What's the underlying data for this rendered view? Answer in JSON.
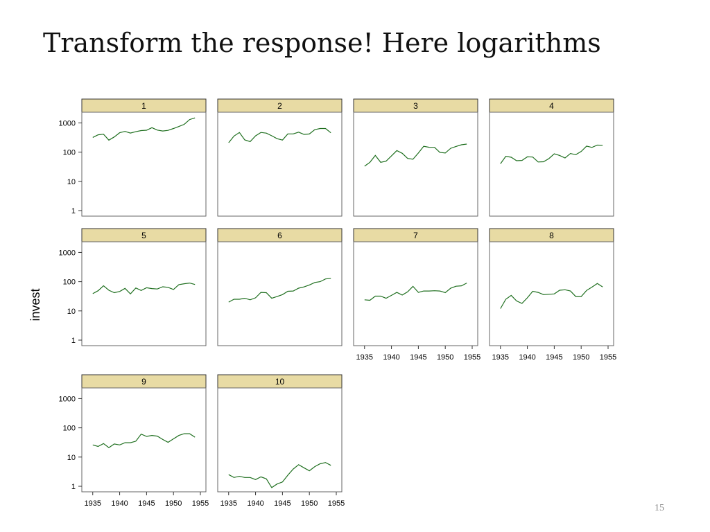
{
  "slide": {
    "title": "Transform the response! Here logarithms",
    "page_number": "15"
  },
  "chart_data": {
    "type": "line",
    "layout": "small-multiples",
    "ylabel": "invest",
    "xlabel": "",
    "y_scale": "log",
    "ylim": [
      1,
      1500
    ],
    "xlim": [
      1934,
      1955
    ],
    "y_ticks": [
      1,
      10,
      100,
      1000
    ],
    "y_tick_labels": [
      "1",
      "10",
      "100",
      "1000"
    ],
    "x_ticks": [
      1935,
      1940,
      1945,
      1950,
      1955
    ],
    "x_tick_labels": [
      "1935",
      "1940",
      "1945",
      "1950",
      "1955"
    ],
    "grid": false,
    "line_color": "#1f6f1f",
    "strip_color": "#e8dba4",
    "x": [
      1935,
      1936,
      1937,
      1938,
      1939,
      1940,
      1941,
      1942,
      1943,
      1944,
      1945,
      1946,
      1947,
      1948,
      1949,
      1950,
      1951,
      1952,
      1953,
      1954
    ],
    "panels": [
      {
        "label": "1",
        "values": [
          318,
          392,
          411,
          258,
          331,
          462,
          512,
          448,
          500,
          548,
          561,
          688,
          569,
          529,
          555,
          643,
          756,
          891,
          1304,
          1487
        ]
      },
      {
        "label": "2",
        "values": [
          210,
          356,
          469,
          262,
          230,
          361,
          472,
          446,
          362,
          288,
          259,
          420,
          421,
          482,
          405,
          418,
          588,
          645,
          642,
          459
        ]
      },
      {
        "label": "3",
        "values": [
          33,
          45,
          77,
          45,
          49,
          74,
          113,
          91,
          61,
          57,
          93,
          159,
          147,
          146,
          98,
          93,
          135,
          157,
          179,
          189
        ]
      },
      {
        "label": "4",
        "values": [
          40,
          72,
          67,
          51,
          52,
          69,
          68,
          46,
          47,
          60,
          88,
          77,
          63,
          90,
          82,
          105,
          161,
          145,
          174,
          172
        ]
      },
      {
        "label": "5",
        "values": [
          39,
          49,
          72,
          51,
          42,
          46,
          59,
          38,
          61,
          50,
          62,
          58,
          56,
          67,
          64,
          54,
          79,
          85,
          90,
          80
        ]
      },
      {
        "label": "6",
        "values": [
          20,
          25,
          25,
          27,
          24,
          28,
          43,
          42,
          27,
          31,
          36,
          47,
          48,
          60,
          66,
          77,
          94,
          100,
          124,
          130
        ]
      },
      {
        "label": "7",
        "values": [
          24,
          23,
          32,
          32,
          27,
          34,
          43,
          35,
          45,
          69,
          43,
          48,
          48,
          49,
          48,
          42,
          60,
          70,
          72,
          90
        ]
      },
      {
        "label": "8",
        "values": [
          12,
          25,
          34,
          22,
          18,
          28,
          47,
          43,
          36,
          37,
          38,
          51,
          53,
          48,
          31,
          31,
          50,
          65,
          87,
          66
        ]
      },
      {
        "label": "9",
        "values": [
          26,
          23,
          29,
          21,
          28,
          26,
          31,
          31,
          35,
          61,
          51,
          55,
          52,
          40,
          32,
          42,
          55,
          63,
          63,
          48
        ]
      },
      {
        "label": "10",
        "values": [
          2.5,
          2.0,
          2.2,
          2.0,
          2.0,
          1.7,
          2.1,
          1.8,
          0.9,
          1.2,
          1.4,
          2.4,
          3.9,
          5.5,
          4.3,
          3.4,
          4.7,
          5.9,
          6.5,
          5.2
        ]
      }
    ]
  }
}
